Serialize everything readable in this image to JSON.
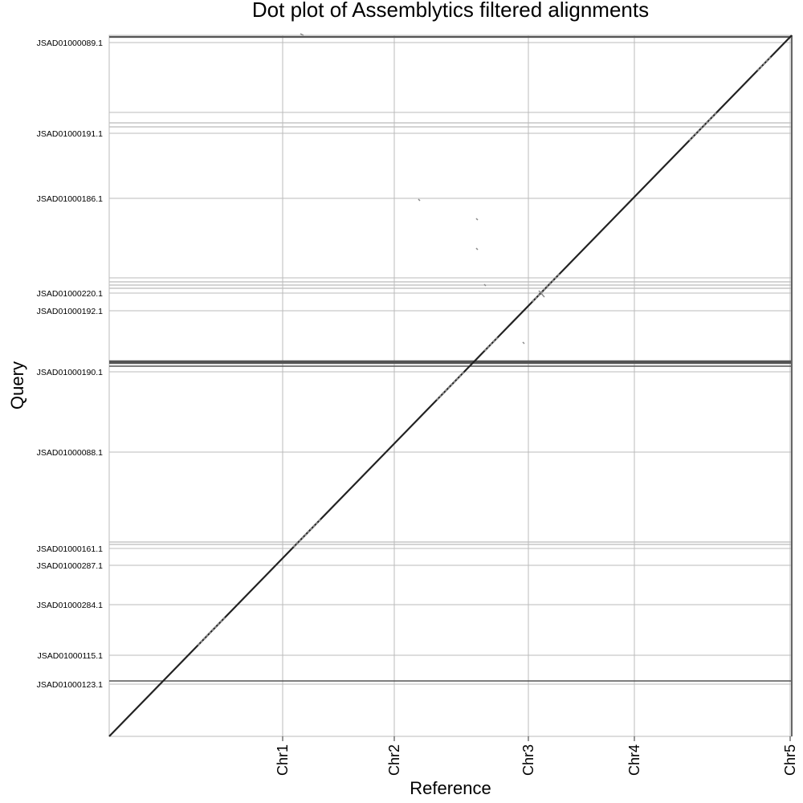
{
  "chart_data": {
    "type": "scatter",
    "title": "Dot plot of Assemblytics filtered alignments",
    "xlabel": "Reference",
    "ylabel": "Query",
    "x_ticks": [
      "Chr1",
      "Chr2",
      "Chr3",
      "Chr4",
      "Chr5"
    ],
    "y_ticks": [
      "JSAD01000089.1",
      "JSAD01000191.1",
      "JSAD01000186.1",
      "JSAD01000220.1",
      "JSAD01000192.1",
      "JSAD01000190.1",
      "JSAD01000088.1",
      "JSAD01000161.1",
      "JSAD01000287.1",
      "JSAD01000284.1",
      "JSAD01000115.1",
      "JSAD01000123.1"
    ],
    "grid": true,
    "series": [
      {
        "values": [
          [
            0.0,
            0.0
          ],
          [
            0.5,
            0.5
          ],
          [
            1.0,
            1.0
          ]
        ]
      }
    ],
    "colors": {
      "alignment": "#222222",
      "alignment_light": "#888888",
      "grid": "#bbbbbb",
      "boundary": "#555555"
    }
  }
}
